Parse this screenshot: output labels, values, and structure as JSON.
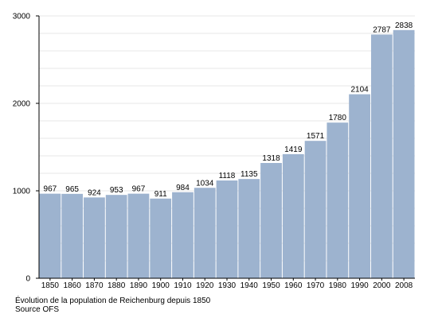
{
  "chart_data": {
    "type": "bar",
    "categories": [
      "1850",
      "1860",
      "1870",
      "1880",
      "1890",
      "1900",
      "1910",
      "1920",
      "1930",
      "1940",
      "1950",
      "1960",
      "1970",
      "1980",
      "1990",
      "2000",
      "2008"
    ],
    "values": [
      967,
      965,
      924,
      953,
      967,
      911,
      984,
      1034,
      1118,
      1135,
      1318,
      1419,
      1571,
      1780,
      2104,
      2787,
      2838
    ],
    "title": "",
    "xlabel": "",
    "ylabel": "",
    "ylim": [
      0,
      3000
    ],
    "yticks": [
      0,
      1000,
      2000,
      3000
    ],
    "grid": true,
    "bar_color": "#9db3cf",
    "grid_color": "#cfcfcf",
    "axis_color": "#000000"
  },
  "caption": {
    "line1": "Évolution de la population de Reichenburg depuis 1850",
    "line2": "Source OFS"
  }
}
